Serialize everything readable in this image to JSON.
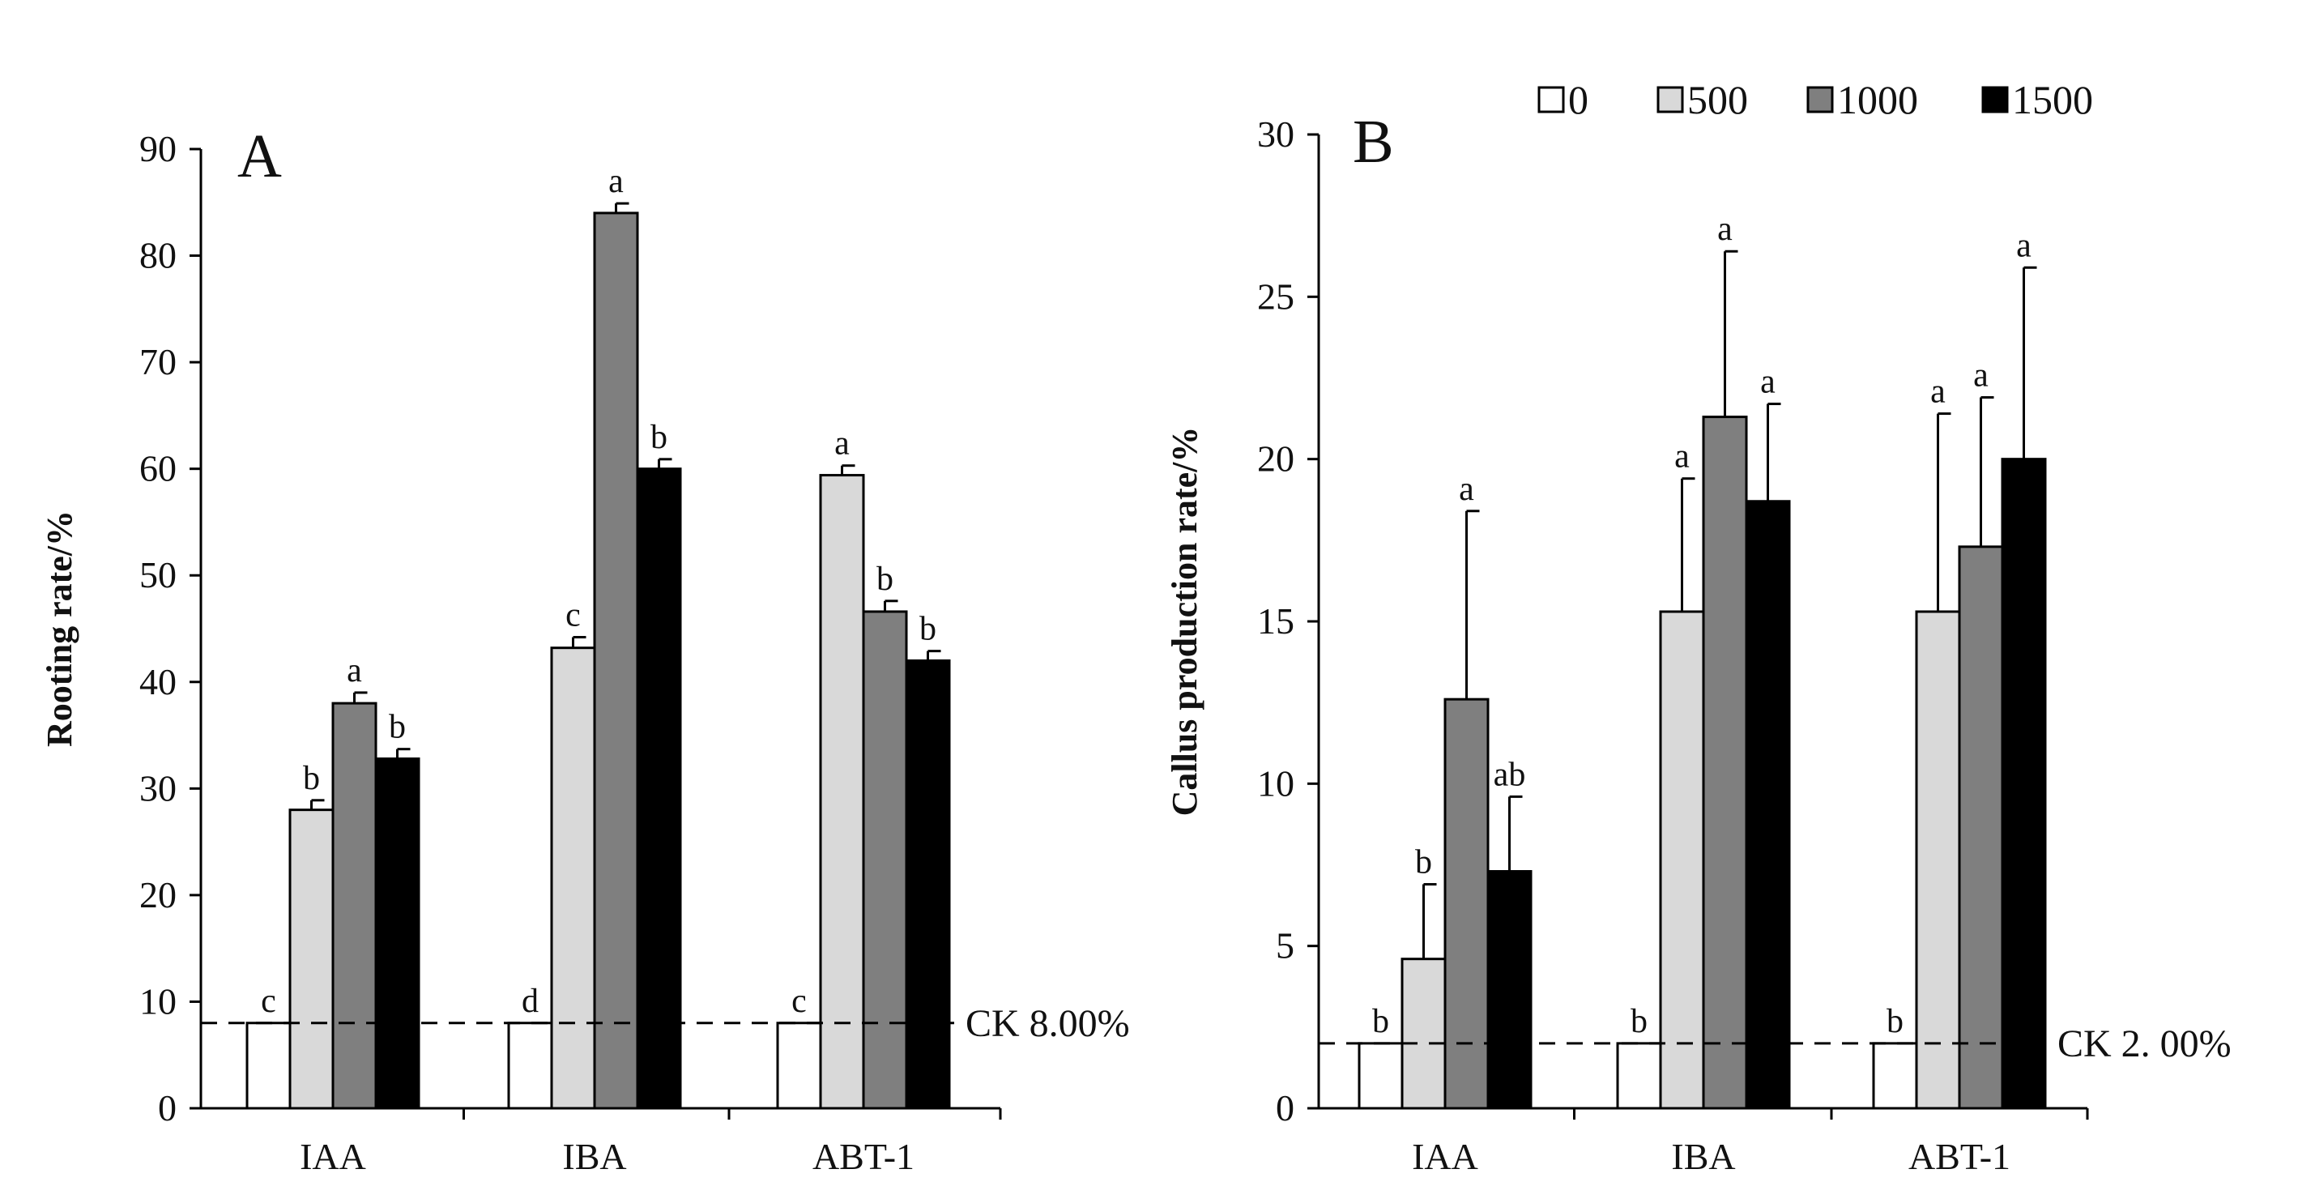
{
  "legend": {
    "title": "",
    "entries": [
      {
        "label": "0",
        "color": "#ffffff"
      },
      {
        "label": "500",
        "color": "#d9d9d9"
      },
      {
        "label": "1000",
        "color": "#7f7f7f"
      },
      {
        "label": "1500",
        "color": "#000000"
      }
    ]
  },
  "chart_data": [
    {
      "type": "bar",
      "panel": "A",
      "ylabel": "Rooting rate/%",
      "ylim": [
        0,
        90
      ],
      "yticks": [
        0,
        10,
        20,
        30,
        40,
        50,
        60,
        70,
        80,
        90
      ],
      "categories": [
        "IAA",
        "IBA",
        "ABT-1"
      ],
      "series": [
        {
          "name": "0",
          "values": [
            8,
            8,
            8
          ],
          "errors": [
            0,
            0,
            0
          ],
          "letters": [
            "c",
            "d",
            "c"
          ]
        },
        {
          "name": "500",
          "values": [
            28,
            43.2,
            59.4
          ],
          "errors": [
            0.9,
            1.0,
            0.9
          ],
          "letters": [
            "b",
            "c",
            "a"
          ]
        },
        {
          "name": "1000",
          "values": [
            38,
            84,
            46.6
          ],
          "errors": [
            1.0,
            0.9,
            1.0
          ],
          "letters": [
            "a",
            "a",
            "b"
          ]
        },
        {
          "name": "1500",
          "values": [
            32.8,
            60,
            42
          ],
          "errors": [
            0.9,
            0.9,
            0.9
          ],
          "letters": [
            "b",
            "b",
            "b"
          ]
        }
      ],
      "reference": {
        "value": 8,
        "label": "CK 8.00%"
      }
    },
    {
      "type": "bar",
      "panel": "B",
      "ylabel": "Callus production rate/%",
      "ylim": [
        0,
        30
      ],
      "yticks": [
        0,
        5,
        10,
        15,
        20,
        25,
        30
      ],
      "categories": [
        "IAA",
        "IBA",
        "ABT-1"
      ],
      "series": [
        {
          "name": "0",
          "values": [
            2,
            2,
            2
          ],
          "errors": [
            0,
            0,
            0
          ],
          "letters": [
            "b",
            "b",
            "b"
          ]
        },
        {
          "name": "500",
          "values": [
            4.6,
            15.3,
            15.3
          ],
          "errors": [
            2.3,
            4.1,
            6.1
          ],
          "letters": [
            "b",
            "a",
            "a"
          ]
        },
        {
          "name": "1000",
          "values": [
            12.6,
            21.3,
            17.3
          ],
          "errors": [
            5.8,
            5.1,
            4.6
          ],
          "letters": [
            "a",
            "a",
            "a"
          ]
        },
        {
          "name": "1500",
          "values": [
            7.3,
            18.7,
            20
          ],
          "errors": [
            2.3,
            3.0,
            5.9
          ],
          "letters": [
            "ab",
            "a",
            "a"
          ]
        }
      ],
      "reference": {
        "value": 2,
        "label": "CK 2. 00%"
      }
    }
  ]
}
